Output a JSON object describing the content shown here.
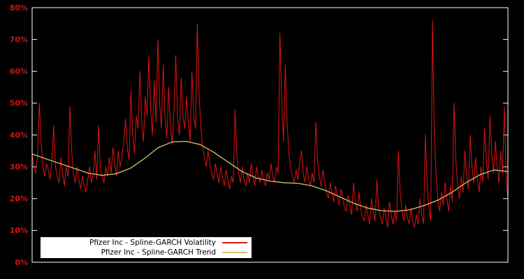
{
  "chart_data": {
    "type": "line",
    "title": "",
    "xlabel": "",
    "ylabel": "",
    "ylim": [
      0,
      80
    ],
    "grid": false,
    "background_color": "#000000",
    "frame_color": "#ffffff",
    "tick_label_color": "#cc1414",
    "yticks": {
      "values": [
        0,
        10,
        20,
        30,
        40,
        50,
        60,
        70,
        80
      ],
      "labels": [
        "0%",
        "10%",
        "20%",
        "30%",
        "40%",
        "50%",
        "60%",
        "70%",
        "80%"
      ]
    },
    "legend": {
      "position": "bottom-left",
      "background": "#ffffff",
      "text_color": "#000000"
    },
    "series": [
      {
        "name": "Pfizer Inc - Spline-GARCH Volatility",
        "color": "#dd1414",
        "stroke_width": 1,
        "values": [
          34,
          30,
          28,
          33,
          50,
          38,
          30,
          27,
          31,
          29,
          26,
          32,
          43,
          30,
          27,
          25,
          33,
          28,
          24,
          30,
          27,
          49,
          35,
          28,
          25,
          30,
          26,
          23,
          27,
          24,
          22,
          26,
          30,
          25,
          28,
          35,
          26,
          43,
          29,
          27,
          25,
          30,
          27,
          33,
          28,
          36,
          31,
          27,
          35,
          30,
          33,
          38,
          45,
          36,
          32,
          54,
          40,
          34,
          46,
          42,
          60,
          44,
          38,
          52,
          46,
          65,
          48,
          40,
          57,
          44,
          70,
          50,
          42,
          62,
          46,
          39,
          55,
          43,
          37,
          48,
          65,
          45,
          40,
          58,
          46,
          42,
          52,
          44,
          38,
          60,
          46,
          42,
          75,
          52,
          42,
          36,
          33,
          30,
          35,
          31,
          28,
          26,
          31,
          28,
          25,
          30,
          27,
          24,
          29,
          26,
          23,
          27,
          25,
          48,
          34,
          28,
          25,
          30,
          26,
          24,
          28,
          25,
          31,
          27,
          24,
          30,
          27,
          25,
          29,
          26,
          24,
          28,
          26,
          31,
          27,
          25,
          30,
          28,
          72,
          50,
          38,
          62,
          44,
          34,
          30,
          27,
          25,
          29,
          26,
          31,
          35,
          28,
          25,
          30,
          26,
          24,
          28,
          25,
          44,
          32,
          27,
          24,
          29,
          25,
          22,
          20,
          25,
          22,
          19,
          24,
          21,
          18,
          23,
          20,
          17,
          16,
          21,
          18,
          15,
          25,
          19,
          16,
          22,
          17,
          14,
          13,
          18,
          15,
          12,
          20,
          16,
          13,
          26,
          17,
          14,
          12,
          17,
          14,
          11,
          19,
          15,
          12,
          16,
          13,
          35,
          22,
          16,
          13,
          18,
          14,
          12,
          17,
          13,
          11,
          15,
          12,
          20,
          15,
          12,
          40,
          25,
          17,
          13,
          76,
          40,
          28,
          20,
          16,
          22,
          18,
          25,
          20,
          16,
          24,
          19,
          50,
          32,
          24,
          20,
          27,
          22,
          35,
          27,
          23,
          40,
          30,
          25,
          33,
          26,
          22,
          30,
          25,
          42,
          32,
          26,
          46,
          34,
          28,
          38,
          30,
          25,
          35,
          28,
          49,
          26,
          20
        ]
      },
      {
        "name": "Pfizer Inc - Spline-GARCH Trend",
        "color": "#cfc46f",
        "stroke_width": 1.3,
        "values": [
          34,
          32.5,
          31,
          29.5,
          28,
          27.3,
          27.8,
          29.5,
          32.5,
          36,
          37.8,
          38,
          37,
          34.5,
          31.5,
          28.5,
          26.5,
          25.5,
          25,
          24.8,
          24,
          22.5,
          20.5,
          18.5,
          17,
          16.2,
          16,
          16.5,
          17.8,
          19.5,
          22,
          25,
          27.5,
          29,
          28.5
        ]
      }
    ]
  }
}
